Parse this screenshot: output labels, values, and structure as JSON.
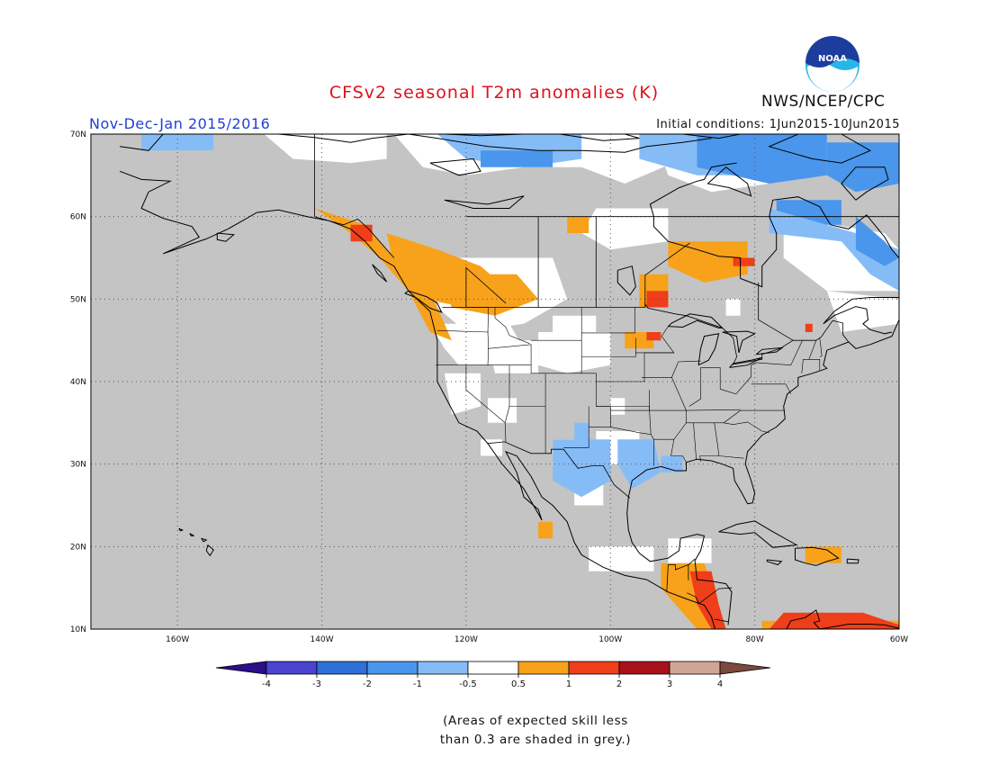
{
  "title": "CFSv2 seasonal T2m anomalies (K)",
  "period": "Nov-Dec-Jan 2015/2016",
  "initial_conditions": "Initial conditions: 1Jun2015-10Jun2015",
  "agency": "NWS/NCEP/CPC",
  "logo_text": "NOAA",
  "note_line1": "(Areas of expected skill less",
  "note_line2": "than 0.3 are shaded in grey.)",
  "map": {
    "lon_range": [
      -172,
      -60
    ],
    "lat_range": [
      10,
      70
    ],
    "lat_ticks": [
      "70N",
      "60N",
      "50N",
      "40N",
      "30N",
      "20N",
      "10N"
    ],
    "lon_ticks": [
      "160W",
      "140W",
      "120W",
      "100W",
      "80W",
      "60W"
    ],
    "grid": true,
    "background_color": "#c4c4c4",
    "coastline_color": "#000000"
  },
  "colorbar": {
    "labels": [
      "-4",
      "-3",
      "-2",
      "-1",
      "-0.5",
      "0.5",
      "1",
      "2",
      "3",
      "4"
    ],
    "colors": [
      "#2a0e8a",
      "#4a44d0",
      "#2e6fd8",
      "#4a96ec",
      "#86bcf6",
      "#ffffff",
      "#f7a21a",
      "#ef3e1a",
      "#a8111a",
      "#d1a595",
      "#7a4a3e"
    ]
  },
  "anomaly_regions": [
    {
      "category": "white",
      "color": "#ffffff"
    },
    {
      "category": "light-blue",
      "color": "#86bcf6"
    },
    {
      "category": "mid-blue",
      "color": "#4a96ec"
    },
    {
      "category": "orange",
      "color": "#f7a21a"
    },
    {
      "category": "red",
      "color": "#ef3e1a"
    }
  ]
}
